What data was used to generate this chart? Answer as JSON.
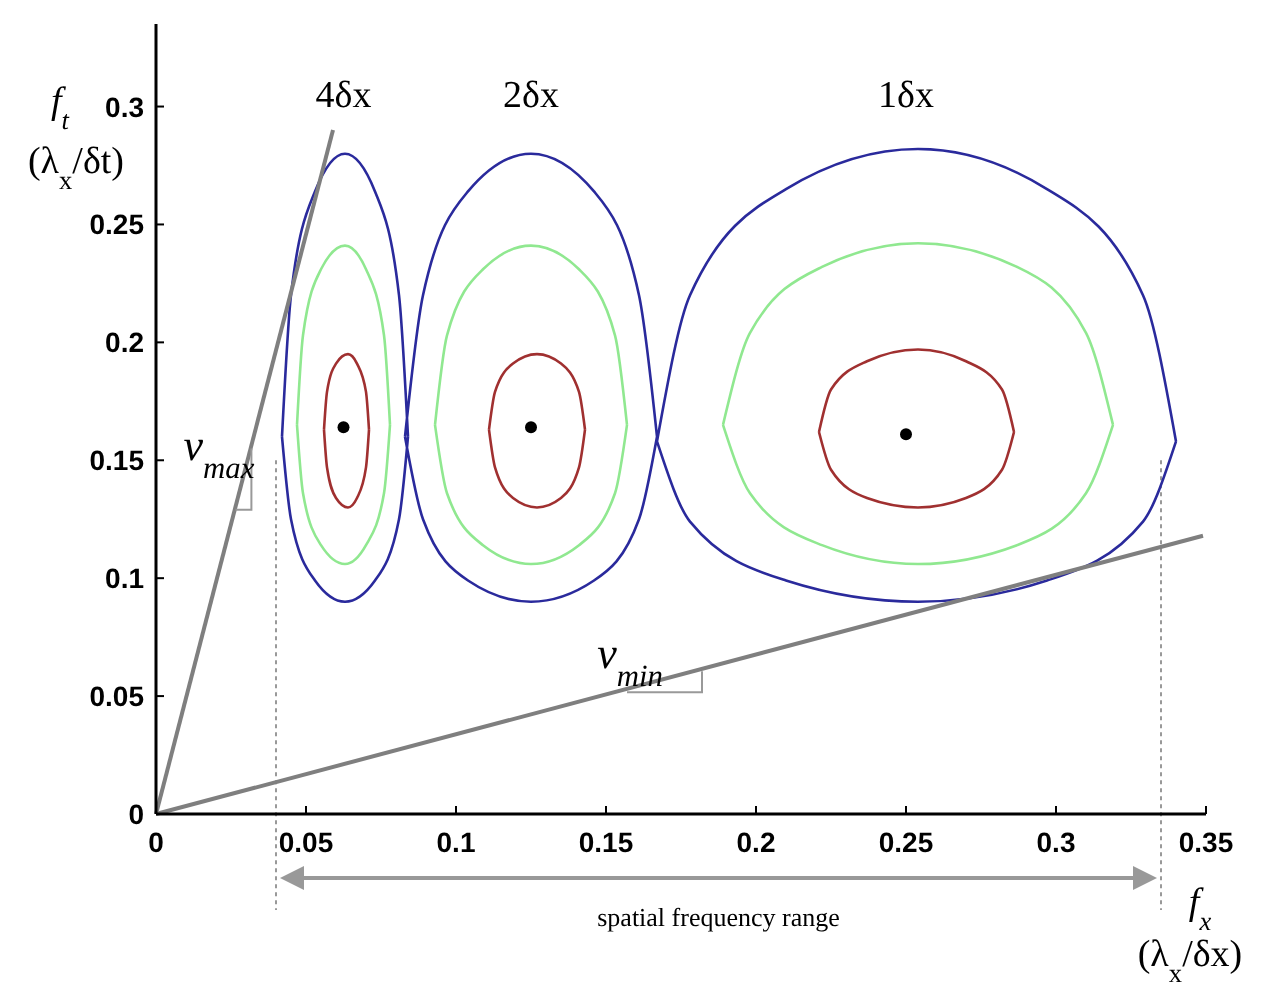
{
  "chart_data": {
    "type": "line",
    "xlabel": "f$_{x}$ (λ$_{x}$/δx)",
    "ylabel": "f$_{t}$ (λ$_{x}$/δt)",
    "xlim": [
      0,
      0.35
    ],
    "ylim": [
      0,
      0.335
    ],
    "xticks": [
      0,
      0.05,
      0.1,
      0.15,
      0.2,
      0.25,
      0.3,
      0.35
    ],
    "yticks": [
      0,
      0.05,
      0.1,
      0.15,
      0.2,
      0.25,
      0.3
    ],
    "grid": false,
    "legend": false,
    "line_style": "solid",
    "series": [
      {
        "color": "#2a2a9c",
        "x": [
          0.042,
          0.045,
          0.053,
          0.063,
          0.073,
          0.081,
          0.084,
          null,
          0.042,
          0.045,
          0.053,
          0.063,
          0.073,
          0.081,
          0.084,
          null,
          0.083,
          0.089,
          0.104,
          0.125,
          0.146,
          0.161,
          0.167,
          null,
          0.083,
          0.089,
          0.104,
          0.125,
          0.146,
          0.161,
          0.167,
          null,
          0.167,
          0.178,
          0.21,
          0.254,
          0.297,
          0.329,
          0.34,
          null,
          0.167,
          0.178,
          0.21,
          0.254,
          0.297,
          0.329,
          0.34
        ],
        "values": [
          0.16,
          0.22,
          0.264,
          0.28,
          0.264,
          0.22,
          0.16,
          null,
          0.16,
          0.125,
          0.099,
          0.09,
          0.099,
          0.125,
          0.16,
          null,
          0.16,
          0.22,
          0.264,
          0.28,
          0.264,
          0.22,
          0.16,
          null,
          0.16,
          0.125,
          0.099,
          0.09,
          0.099,
          0.125,
          0.16,
          null,
          0.158,
          0.22,
          0.265,
          0.282,
          0.265,
          0.22,
          0.158,
          null,
          0.158,
          0.124,
          0.099,
          0.09,
          0.099,
          0.124,
          0.158
        ]
      },
      {
        "color": "#90e890",
        "x": [
          0.047,
          0.049,
          0.055,
          0.063,
          0.07,
          0.076,
          0.078,
          null,
          0.047,
          0.049,
          0.055,
          0.063,
          0.07,
          0.076,
          0.078,
          null,
          0.093,
          0.097,
          0.109,
          0.125,
          0.141,
          0.153,
          0.157,
          null,
          0.093,
          0.097,
          0.109,
          0.125,
          0.141,
          0.153,
          0.157,
          null,
          0.189,
          0.198,
          0.222,
          0.254,
          0.287,
          0.31,
          0.319,
          null,
          0.189,
          0.198,
          0.222,
          0.254,
          0.287,
          0.31,
          0.319
        ],
        "values": [
          0.165,
          0.203,
          0.231,
          0.241,
          0.231,
          0.203,
          0.165,
          null,
          0.165,
          0.136,
          0.114,
          0.106,
          0.114,
          0.136,
          0.165,
          null,
          0.165,
          0.203,
          0.231,
          0.241,
          0.231,
          0.203,
          0.165,
          null,
          0.165,
          0.136,
          0.114,
          0.106,
          0.114,
          0.136,
          0.165,
          null,
          0.165,
          0.204,
          0.232,
          0.242,
          0.232,
          0.204,
          0.165,
          null,
          0.165,
          0.136,
          0.114,
          0.106,
          0.114,
          0.136,
          0.165
        ]
      },
      {
        "color": "#a03030",
        "x": [
          0.056,
          0.057,
          0.06,
          0.064,
          0.067,
          0.07,
          0.071,
          null,
          0.056,
          0.057,
          0.06,
          0.064,
          0.067,
          0.07,
          0.071,
          null,
          0.111,
          0.113,
          0.119,
          0.127,
          0.135,
          0.141,
          0.143,
          null,
          0.111,
          0.113,
          0.119,
          0.127,
          0.135,
          0.141,
          0.143,
          null,
          0.221,
          0.225,
          0.237,
          0.254,
          0.27,
          0.282,
          0.286,
          null,
          0.221,
          0.225,
          0.237,
          0.254,
          0.27,
          0.282,
          0.286
        ],
        "values": [
          0.163,
          0.179,
          0.191,
          0.195,
          0.191,
          0.179,
          0.163,
          null,
          0.163,
          0.147,
          0.134,
          0.13,
          0.134,
          0.147,
          0.163,
          null,
          0.163,
          0.179,
          0.191,
          0.195,
          0.191,
          0.179,
          0.163,
          null,
          0.163,
          0.147,
          0.134,
          0.13,
          0.134,
          0.147,
          0.163,
          null,
          0.162,
          0.18,
          0.192,
          0.197,
          0.192,
          0.18,
          0.162,
          null,
          0.162,
          0.146,
          0.134,
          0.13,
          0.134,
          0.146,
          0.162
        ]
      },
      {
        "type": "scatter",
        "marker": "circle",
        "color": "#000000",
        "x": [
          0.0625,
          0.125,
          0.25
        ],
        "values": [
          0.164,
          0.164,
          0.161
        ]
      },
      {
        "color": "#7f7f7f",
        "x": [
          0,
          0.059
        ],
        "values": [
          0,
          0.29
        ]
      },
      {
        "color": "#7f7f7f",
        "x": [
          0,
          0.349
        ],
        "values": [
          0,
          0.118
        ]
      }
    ],
    "ref_lines": [
      {
        "axis": "x",
        "value": 0.04,
        "color": "#999999",
        "line_style": "dotted"
      },
      {
        "axis": "x",
        "value": 0.335,
        "color": "#999999",
        "line_style": "dotted"
      }
    ],
    "annotations": [
      "4δx",
      "2δx",
      "1δx",
      "v$_{max}$",
      "v$_{min}$",
      "spatial frequency range"
    ]
  }
}
